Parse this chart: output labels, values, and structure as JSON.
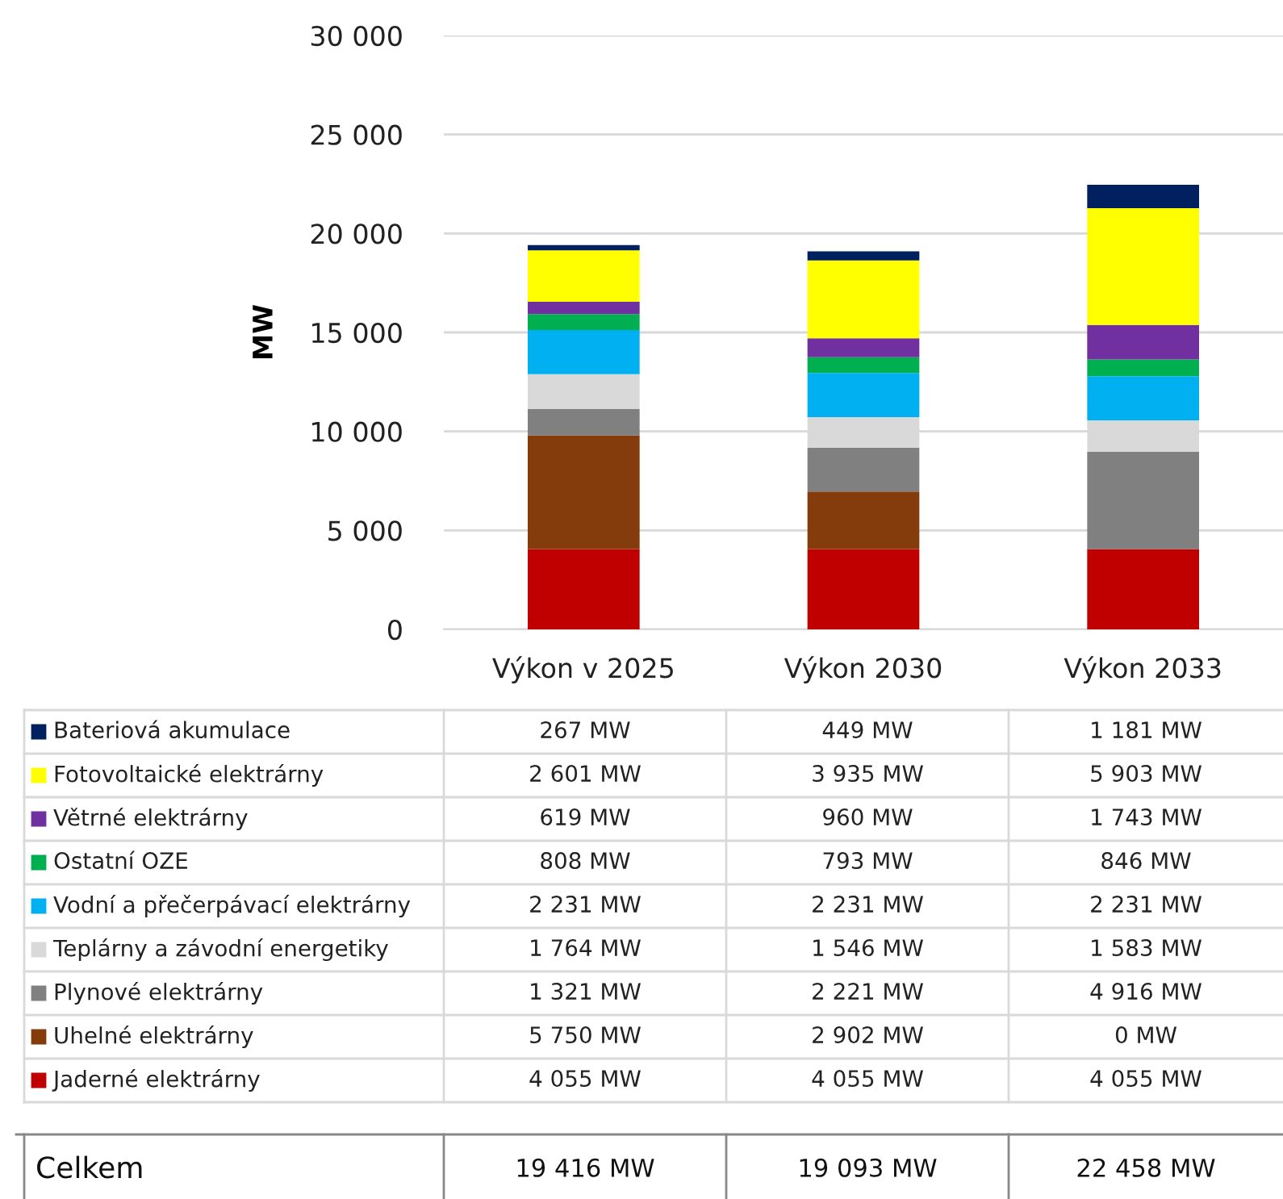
{
  "chart_data": {
    "type": "bar",
    "stacked": true,
    "ylabel": "MW",
    "categories": [
      "Výkon v 2025",
      "Výkon 2030",
      "Výkon 2033"
    ],
    "series": [
      {
        "name": "Jaderné elektrárny",
        "color": "#c00000",
        "values": [
          4055,
          4055,
          4055
        ],
        "value_labels": [
          "4 055 MW",
          "4 055 MW",
          "4 055 MW"
        ]
      },
      {
        "name": "Uhelné elektrárny",
        "color": "#843c0c",
        "values": [
          5750,
          2902,
          0
        ],
        "value_labels": [
          "5 750 MW",
          "2 902 MW",
          "0 MW"
        ]
      },
      {
        "name": "Plynové elektrárny",
        "color": "#808080",
        "values": [
          1321,
          2221,
          4916
        ],
        "value_labels": [
          "1 321 MW",
          "2 221 MW",
          "4 916 MW"
        ]
      },
      {
        "name": "Teplárny a závodní energetiky",
        "color": "#d9d9d9",
        "values": [
          1764,
          1546,
          1583
        ],
        "value_labels": [
          "1 764 MW",
          "1 546 MW",
          "1 583 MW"
        ]
      },
      {
        "name": "Vodní a přečerpávací elektrárny",
        "color": "#00b0f0",
        "values": [
          2231,
          2231,
          2231
        ],
        "value_labels": [
          "2 231 MW",
          "2 231 MW",
          "2 231 MW"
        ]
      },
      {
        "name": "Ostatní OZE",
        "color": "#00b050",
        "values": [
          808,
          793,
          846
        ],
        "value_labels": [
          "808 MW",
          "793 MW",
          "846 MW"
        ]
      },
      {
        "name": "Větrné elektrárny",
        "color": "#7030a0",
        "values": [
          619,
          960,
          1743
        ],
        "value_labels": [
          "619 MW",
          "960 MW",
          "1 743 MW"
        ]
      },
      {
        "name": "Fotovoltaické elektrárny",
        "color": "#ffff00",
        "values": [
          2601,
          3935,
          5903
        ],
        "value_labels": [
          "2 601 MW",
          "3 935 MW",
          "5 903 MW"
        ]
      },
      {
        "name": "Bateriová akumulace",
        "color": "#002060",
        "values": [
          267,
          449,
          1181
        ],
        "value_labels": [
          "267 MW",
          "449 MW",
          "1 181 MW"
        ]
      }
    ],
    "annotations": [
      "Celkem",
      "19 416 MW",
      "19 093 MW",
      "22 458 MW"
    ],
    "ylim": [
      0,
      30000
    ],
    "yticks": [
      {
        "value": 0,
        "label": "0"
      },
      {
        "value": 5000,
        "label": "5 000"
      },
      {
        "value": 10000,
        "label": "10 000"
      },
      {
        "value": 15000,
        "label": "15 000"
      },
      {
        "value": 20000,
        "label": "20 000"
      },
      {
        "value": 25000,
        "label": "25 000"
      },
      {
        "value": 30000,
        "label": "30 000"
      }
    ],
    "grid": "y",
    "legend": "bottom"
  }
}
